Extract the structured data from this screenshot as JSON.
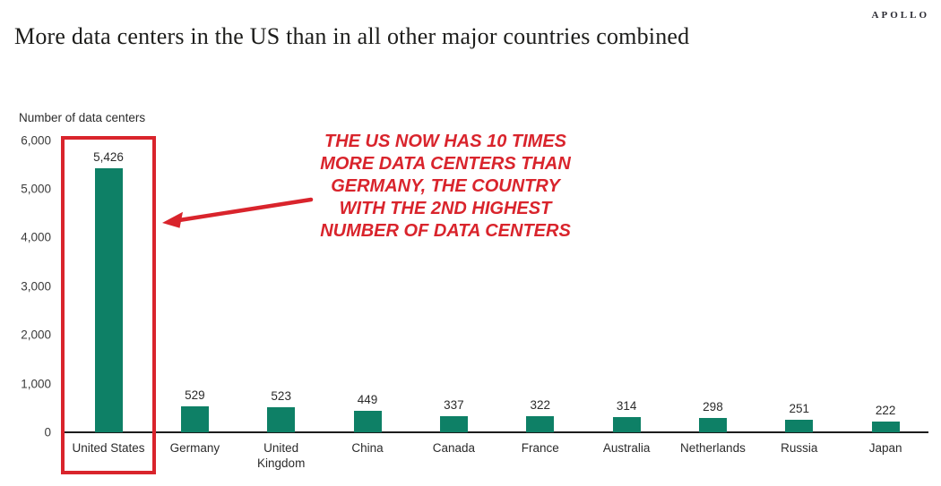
{
  "brand": "APOLLO",
  "title": "More data centers in the US than in all other major countries combined",
  "chart_data": {
    "type": "bar",
    "title": "More data centers in the US than in all other major countries combined",
    "ylabel": "Number of data centers",
    "xlabel": "",
    "categories": [
      "United States",
      "Germany",
      "United Kingdom",
      "China",
      "Canada",
      "France",
      "Australia",
      "Netherlands",
      "Russia",
      "Japan"
    ],
    "values": [
      5426,
      529,
      523,
      449,
      337,
      322,
      314,
      298,
      251,
      222
    ],
    "value_labels": [
      "5,426",
      "529",
      "523",
      "449",
      "337",
      "322",
      "314",
      "298",
      "251",
      "222"
    ],
    "ylim": [
      0,
      6000
    ],
    "yticks": [
      0,
      1000,
      2000,
      3000,
      4000,
      5000,
      6000
    ],
    "ytick_labels": [
      "0",
      "1,000",
      "2,000",
      "3,000",
      "4,000",
      "5,000",
      "6,000"
    ],
    "grid": false,
    "legend": false,
    "bar_color": "#0E8066"
  },
  "annotation": {
    "lines": [
      "THE US NOW HAS 10 TIMES",
      "MORE DATA CENTERS THAN",
      "GERMANY, THE COUNTRY",
      "WITH THE 2ND HIGHEST",
      "NUMBER OF DATA CENTERS"
    ],
    "color": "#D9242C",
    "highlighted_category": "United States"
  },
  "colors": {
    "bar": "#0E8066",
    "annotation_red": "#D9242C",
    "title_text": "#1D1D1B",
    "axis_text": "#3C3C3C"
  }
}
